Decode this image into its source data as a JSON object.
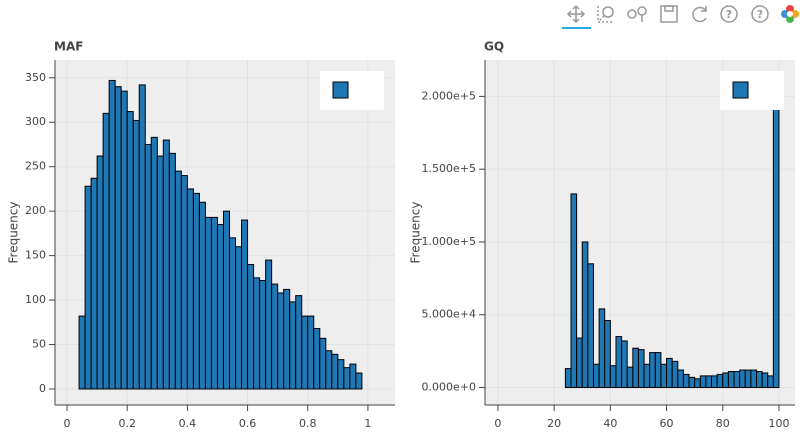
{
  "chart_data": [
    {
      "type": "histogram",
      "title": "MAF",
      "y_label": "Frequency",
      "color": "#1f77b4",
      "bins": [
        0,
        0.02,
        0.04,
        0.06,
        0.08,
        0.1,
        0.12,
        0.14,
        0.16,
        0.18,
        0.2,
        0.22,
        0.24,
        0.26,
        0.28,
        0.3,
        0.32,
        0.34,
        0.36,
        0.38,
        0.4,
        0.42,
        0.44,
        0.46,
        0.48,
        0.5,
        0.52,
        0.54,
        0.56,
        0.58,
        0.6,
        0.62,
        0.64,
        0.66,
        0.68,
        0.7,
        0.72,
        0.74,
        0.76,
        0.78,
        0.8,
        0.82,
        0.84,
        0.86,
        0.88,
        0.9,
        0.92,
        0.94,
        0.96,
        0.98,
        1
      ],
      "values": [
        0,
        0,
        82,
        228,
        237,
        262,
        310,
        347,
        340,
        335,
        312,
        302,
        342,
        275,
        283,
        262,
        280,
        265,
        245,
        240,
        225,
        220,
        210,
        193,
        193,
        185,
        200,
        170,
        160,
        190,
        140,
        125,
        122,
        145,
        118,
        108,
        112,
        98,
        105,
        82,
        82,
        68,
        57,
        43,
        39,
        33,
        24,
        28,
        18,
        0
      ],
      "xlim": [
        -0.04,
        1.09
      ],
      "ylim": [
        -18,
        370
      ],
      "xticks": [
        0,
        0.2,
        0.4,
        0.6,
        0.8,
        1
      ],
      "yticks": [
        0,
        50,
        100,
        150,
        200,
        250,
        300,
        350
      ],
      "grid": true,
      "legend": "top_right"
    },
    {
      "type": "histogram",
      "title": "GQ",
      "y_label": "Frequency",
      "color": "#1f77b4",
      "bins": [
        0,
        2,
        4,
        6,
        8,
        10,
        12,
        14,
        16,
        18,
        20,
        22,
        24,
        26,
        28,
        30,
        32,
        34,
        36,
        38,
        40,
        42,
        44,
        46,
        48,
        50,
        52,
        54,
        56,
        58,
        60,
        62,
        64,
        66,
        68,
        70,
        72,
        74,
        76,
        78,
        80,
        82,
        84,
        86,
        88,
        90,
        92,
        94,
        96,
        98,
        100
      ],
      "values": [
        0,
        0,
        0,
        0,
        0,
        0,
        0,
        0,
        0,
        0,
        0,
        0,
        13000,
        133000,
        34000,
        100000,
        85000,
        16000,
        54000,
        46000,
        15000,
        35000,
        32000,
        14000,
        27000,
        26000,
        16000,
        24000,
        24000,
        16000,
        20000,
        18000,
        12000,
        9000,
        7000,
        6000,
        8000,
        8000,
        8000,
        9000,
        10000,
        11000,
        11000,
        12000,
        12000,
        12000,
        11000,
        10000,
        8000,
        214000
      ],
      "xlim": [
        -4.6,
        105.7
      ],
      "ylim": [
        -12000,
        225000
      ],
      "xticks": [
        0,
        20,
        40,
        60,
        80,
        100
      ],
      "yticks": [
        {
          "value": 0,
          "label": "0.000e+0"
        },
        {
          "value": 50000,
          "label": "5.000e+4"
        },
        {
          "value": 100000,
          "label": "1.000e+5"
        },
        {
          "value": 150000,
          "label": "1.500e+5"
        },
        {
          "value": 200000,
          "label": "2.000e+5"
        }
      ],
      "grid": true,
      "legend": "top_right"
    }
  ]
}
